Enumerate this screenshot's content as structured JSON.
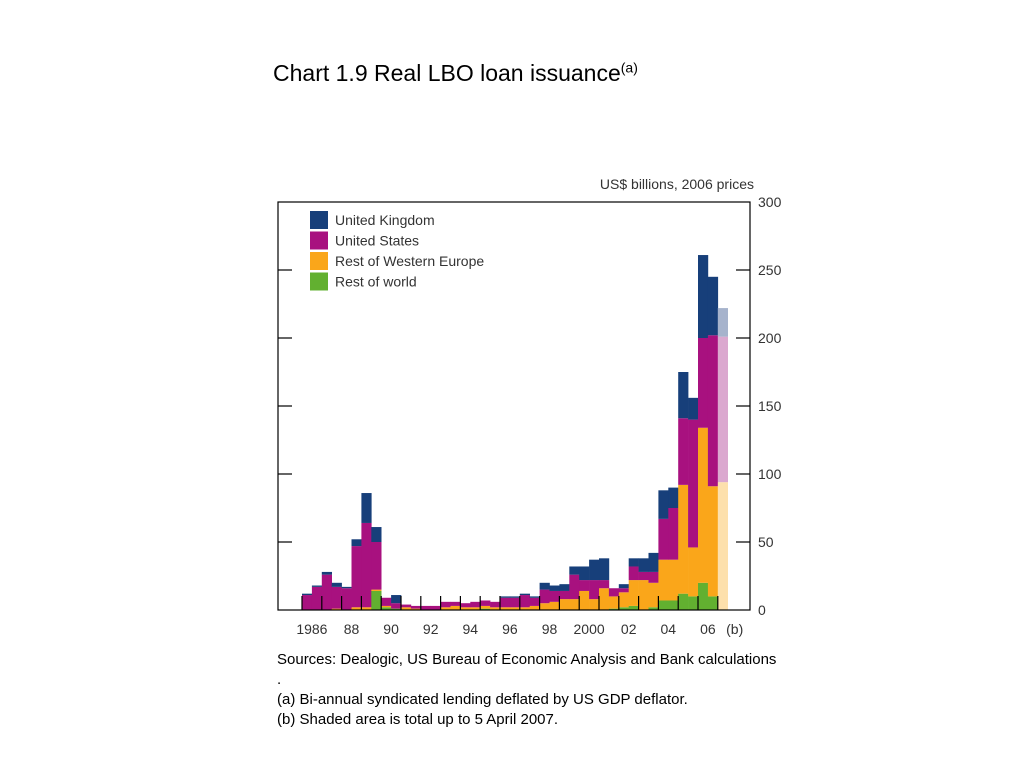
{
  "slide_title": {
    "text": "Chart 1.9  Real LBO loan issuance",
    "superscript": "(a)"
  },
  "notes": [
    "Sources:  Dealogic, US Bureau of Economic Analysis and Bank calculations",
    ".",
    "(a) Bi-annual syndicated lending deflated by US GDP deflator.",
    "(b) Shaded area is total up to 5 April 2007."
  ],
  "colors": {
    "united_kingdom": "#173f7a",
    "united_states": "#a8117f",
    "rest_of_western_europe": "#faa61a",
    "rest_of_world": "#62b030",
    "shaded_united_kingdom": "#a6b3cc",
    "shaded_united_states": "#dba8cf",
    "shaded_rest_of_western_europe": "#fde0ac"
  },
  "chart_data": {
    "type": "bar",
    "stacked": true,
    "unit_label": "US$ billions, 2006 prices",
    "ylim": [
      0,
      300
    ],
    "y_ticks": [
      "300",
      "250",
      "200",
      "150",
      "100",
      "50",
      "0"
    ],
    "x_tick_labels": [
      "1986",
      "88",
      "90",
      "92",
      "94",
      "96",
      "98",
      "2000",
      "02",
      "04",
      "06",
      "(b)"
    ],
    "legend_position": "top-left",
    "grid": false,
    "categories": [
      "1986 H1",
      "1986 H2",
      "1987 H1",
      "1987 H2",
      "1988 H1",
      "1988 H2",
      "1989 H1",
      "1989 H2",
      "1990 H1",
      "1990 H2",
      "1991 H1",
      "1991 H2",
      "1992 H1",
      "1992 H2",
      "1993 H1",
      "1993 H2",
      "1994 H1",
      "1994 H2",
      "1995 H1",
      "1995 H2",
      "1996 H1",
      "1996 H2",
      "1997 H1",
      "1997 H2",
      "1998 H1",
      "1998 H2",
      "1999 H1",
      "1999 H2",
      "2000 H1",
      "2000 H2",
      "2001 H1",
      "2001 H2",
      "2002 H1",
      "2002 H2",
      "2003 H1",
      "2003 H2",
      "2004 H1",
      "2004 H2",
      "2005 H1",
      "2005 H2",
      "2006 H1",
      "2006 H2",
      "2007 (b)"
    ],
    "series": [
      {
        "name": "Rest of world",
        "color_key": "rest_of_world",
        "values": [
          0,
          0,
          0,
          0,
          0,
          0,
          0,
          14,
          2,
          1,
          0,
          0,
          0,
          0,
          0,
          0,
          0,
          0,
          1,
          0,
          0,
          0,
          0,
          0,
          0,
          0,
          0,
          0,
          0,
          0,
          0,
          1,
          2,
          3,
          0,
          2,
          7,
          7,
          12,
          10,
          20,
          10,
          0
        ]
      },
      {
        "name": "Rest of Western Europe",
        "color_key": "rest_of_western_europe",
        "values": [
          0,
          0,
          0,
          1,
          0,
          2,
          2,
          1,
          1,
          0,
          2,
          1,
          0,
          0,
          2,
          3,
          2,
          2,
          2,
          2,
          2,
          2,
          2,
          3,
          5,
          6,
          8,
          8,
          14,
          8,
          16,
          9,
          11,
          19,
          22,
          18,
          30,
          30,
          80,
          36,
          114,
          81,
          94
        ]
      },
      {
        "name": "United States",
        "color_key": "united_states",
        "values": [
          11,
          17,
          26,
          16,
          16,
          45,
          62,
          35,
          6,
          4,
          2,
          2,
          3,
          3,
          4,
          3,
          3,
          4,
          4,
          4,
          7,
          7,
          9,
          6,
          10,
          8,
          6,
          18,
          8,
          14,
          6,
          6,
          3,
          10,
          6,
          8,
          30,
          38,
          49,
          94,
          66,
          111,
          107
        ]
      },
      {
        "name": "United Kingdom",
        "color_key": "united_kingdom",
        "values": [
          1,
          1,
          2,
          3,
          1,
          5,
          22,
          11,
          0,
          6,
          0,
          0,
          0,
          0,
          0,
          0,
          0,
          0,
          0,
          0,
          1,
          1,
          1,
          1,
          5,
          4,
          5,
          6,
          10,
          15,
          16,
          0,
          3,
          6,
          10,
          14,
          21,
          15,
          34,
          16,
          61,
          43,
          21
        ]
      }
    ],
    "legend": [
      {
        "label": "United Kingdom",
        "color_key": "united_kingdom"
      },
      {
        "label": "United States",
        "color_key": "united_states"
      },
      {
        "label": "Rest of Western Europe",
        "color_key": "rest_of_western_europe"
      },
      {
        "label": "Rest of world",
        "color_key": "rest_of_world"
      }
    ],
    "shaded_categories": [
      "2007 (b)"
    ]
  }
}
